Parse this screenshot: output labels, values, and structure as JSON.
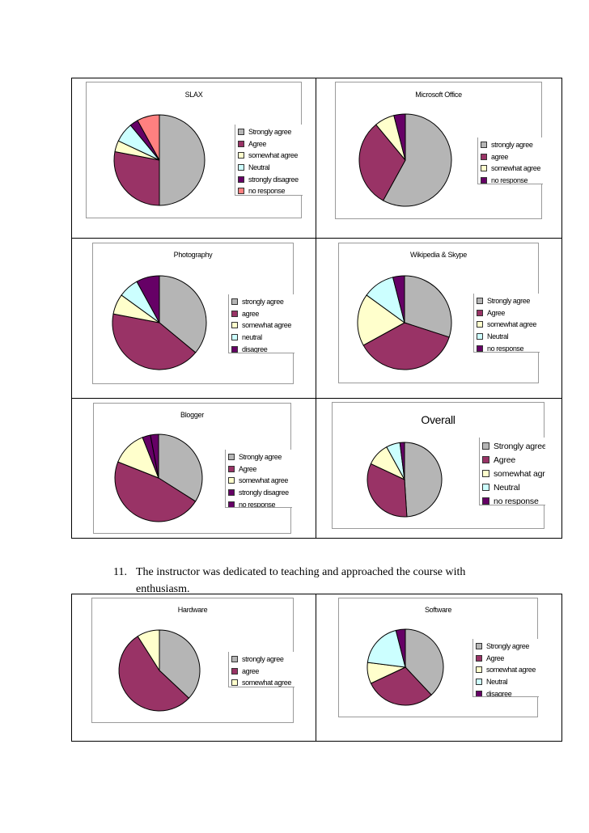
{
  "question": {
    "number": "11.",
    "text": "The instructor was dedicated to teaching and approached the course with enthusiasm."
  },
  "colors": {
    "strongly_agree": "#b5b5b5",
    "agree": "#993366",
    "somewhat_agree": "#ffffcc",
    "neutral": "#ccffff",
    "strongly_disagree": "#660066",
    "no_response": "#ff8080"
  },
  "chart_data": [
    {
      "type": "pie",
      "title": "SLAX",
      "labels": [
        "Strongly agree",
        "Agree",
        "somewhat agree",
        "Neutral",
        "strongly disagree",
        "no response"
      ],
      "values": [
        50,
        28,
        4,
        7,
        3,
        8
      ]
    },
    {
      "type": "pie",
      "title": "Microsoft Office",
      "labels": [
        "strongly agree",
        "agree",
        "somewhat agree",
        "no response"
      ],
      "values": [
        58,
        31,
        7,
        4
      ]
    },
    {
      "type": "pie",
      "title": "Photography",
      "labels": [
        "strongly agree",
        "agree",
        "somewhat agree",
        "neutral",
        "disagree"
      ],
      "values": [
        36,
        42,
        7,
        7,
        8
      ]
    },
    {
      "type": "pie",
      "title": "Wikipedia & Skype",
      "labels": [
        "Strongly agree",
        "Agree",
        "somewhat agree",
        "Neutral",
        "no response"
      ],
      "values": [
        30,
        37,
        18,
        11,
        4
      ]
    },
    {
      "type": "pie",
      "title": "Blogger",
      "labels": [
        "Strongly agree",
        "Agree",
        "somewhat agree",
        "strongly disagree",
        "no response"
      ],
      "values": [
        34,
        47,
        13,
        3,
        3
      ]
    },
    {
      "type": "pie",
      "title": "Overall",
      "labels": [
        "Strongly agree",
        "Agree",
        "somewhat agree",
        "Neutral",
        "no response"
      ],
      "values": [
        49,
        33,
        10,
        6,
        2
      ]
    },
    {
      "type": "pie",
      "title": "Hardware",
      "labels": [
        "strongly agree",
        "agree",
        "somewhat agree"
      ],
      "values": [
        37,
        54,
        9
      ]
    },
    {
      "type": "pie",
      "title": "Software",
      "labels": [
        "Strongly agree",
        "Agree",
        "somewhat agree",
        "Neutral",
        "disagree"
      ],
      "values": [
        38,
        30,
        9,
        19,
        4
      ]
    }
  ]
}
